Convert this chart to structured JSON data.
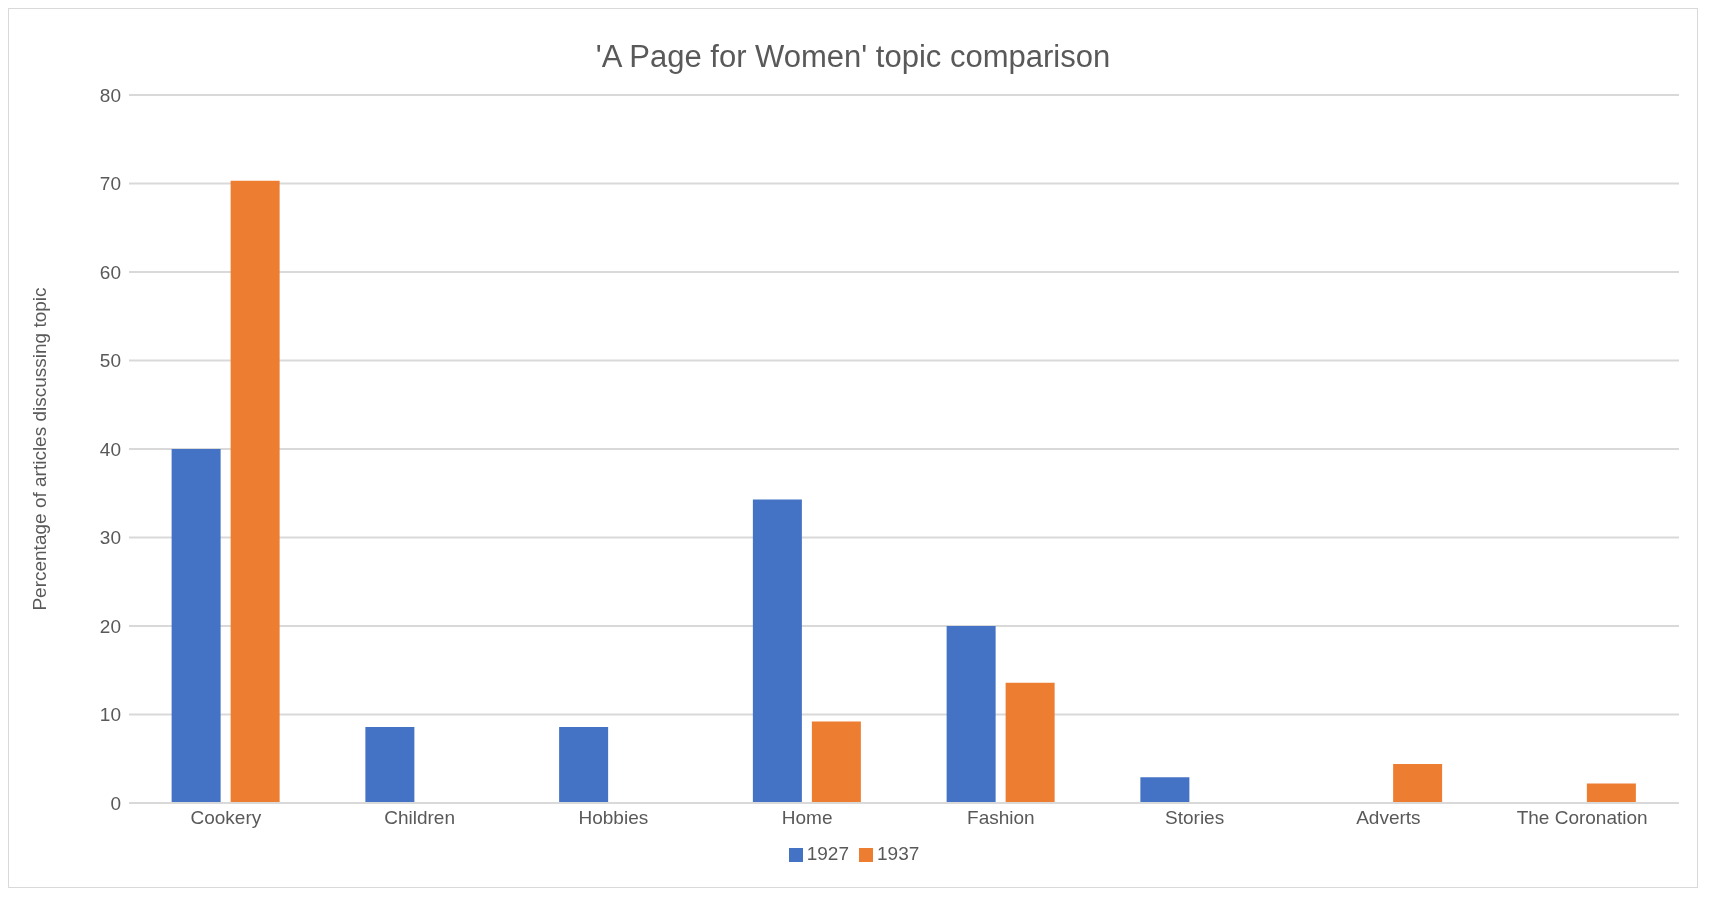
{
  "chart_data": {
    "type": "bar",
    "title": "'A Page for Women' topic comparison",
    "ylabel": "Percentage of articles discussing topic",
    "categories": [
      "Cookery",
      "Children",
      "Hobbies",
      "Home",
      "Fashion",
      "Stories",
      "Adverts",
      "The Coronation"
    ],
    "series": [
      {
        "name": "1927",
        "color": "#4472c4",
        "values": [
          40,
          8.6,
          8.6,
          34.3,
          20,
          2.9,
          null,
          null
        ]
      },
      {
        "name": "1937",
        "color": "#ed7d31",
        "values": [
          70.3,
          null,
          null,
          9.2,
          13.6,
          null,
          4.4,
          2.2
        ]
      }
    ],
    "ylim": [
      0,
      80
    ],
    "yticks": [
      0,
      10,
      20,
      30,
      40,
      50,
      60,
      70,
      80
    ],
    "grid": "y",
    "legend": "bottom"
  }
}
